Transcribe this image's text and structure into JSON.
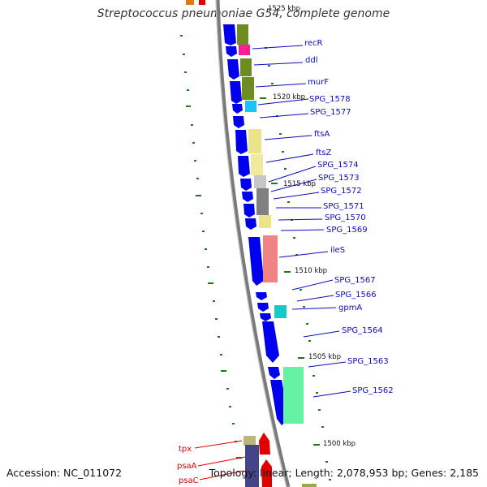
{
  "title": "Streptococcus pneumoniae G54, complete genome",
  "accession": "Accession: NC_011072",
  "summary": "Topology: linear; Length: 2,078,953 bp; Genes: 2,185",
  "top_cut_label": "1525 kbp",
  "colors": {
    "forward_gene": "#0000ee",
    "backbone": "#7a7a7a",
    "tick": "#1a7a1a",
    "label_blue": "#0b0bbd",
    "label_red": "#e00000"
  },
  "kbp_markers": [
    "1520 kbp",
    "1515 kbp",
    "1510 kbp",
    "1505 kbp",
    "1500 kbp"
  ],
  "gene_labels": [
    {
      "name": "recR",
      "color": "blue"
    },
    {
      "name": "ddl",
      "color": "blue"
    },
    {
      "name": "murF",
      "color": "blue"
    },
    {
      "name": "SPG_1578",
      "color": "blue"
    },
    {
      "name": "SPG_1577",
      "color": "blue"
    },
    {
      "name": "ftsA",
      "color": "blue"
    },
    {
      "name": "ftsZ",
      "color": "blue"
    },
    {
      "name": "SPG_1574",
      "color": "blue"
    },
    {
      "name": "SPG_1573",
      "color": "blue"
    },
    {
      "name": "SPG_1572",
      "color": "blue"
    },
    {
      "name": "SPG_1571",
      "color": "blue"
    },
    {
      "name": "SPG_1570",
      "color": "blue"
    },
    {
      "name": "SPG_1569",
      "color": "blue"
    },
    {
      "name": "ileS",
      "color": "blue"
    },
    {
      "name": "SPG_1567",
      "color": "blue"
    },
    {
      "name": "SPG_1566",
      "color": "blue"
    },
    {
      "name": "gpmA",
      "color": "blue"
    },
    {
      "name": "SPG_1564",
      "color": "blue"
    },
    {
      "name": "SPG_1563",
      "color": "blue"
    },
    {
      "name": "SPG_1562",
      "color": "blue"
    },
    {
      "name": "tpx",
      "color": "red"
    },
    {
      "name": "psaA",
      "color": "red"
    },
    {
      "name": "psaC",
      "color": "red"
    }
  ]
}
